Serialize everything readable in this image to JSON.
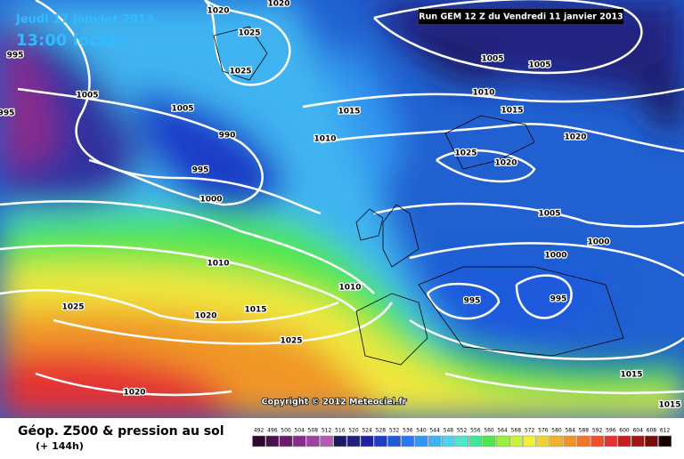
{
  "header": {
    "date": "Jeudi 17 janvier 2013",
    "time": "13:00 locale",
    "run": "Run GEM 12 Z du Vendredi 11 janvier 2013"
  },
  "copyright": "Copyright © 2012 Meteociel.fr",
  "footer": {
    "title": "Géop. Z500 & pression au sol",
    "lead": "(+ 144h)"
  },
  "legend": {
    "values": [
      492,
      496,
      500,
      504,
      508,
      512,
      516,
      520,
      524,
      528,
      532,
      536,
      540,
      544,
      548,
      552,
      556,
      560,
      564,
      568,
      572,
      576,
      580,
      584,
      588,
      592,
      596,
      600,
      604,
      608,
      612
    ],
    "colors": [
      "#2b0a2e",
      "#4b1050",
      "#6a1a6a",
      "#8a2a8a",
      "#a040a0",
      "#b060b0",
      "#1a1a60",
      "#202080",
      "#2020a0",
      "#1e3cc8",
      "#1e5adc",
      "#2878f0",
      "#3296f0",
      "#40b4f0",
      "#50d2f0",
      "#50e6c8",
      "#40e696",
      "#50e650",
      "#96f03c",
      "#c8f03c",
      "#f0f03c",
      "#f0d232",
      "#f0b428",
      "#f09628",
      "#f07828",
      "#f05028",
      "#e63232",
      "#c81e1e",
      "#a01414",
      "#780a0a",
      "#1a0000"
    ]
  },
  "isobar_labels": [
    1020,
    1020,
    1025,
    1025,
    995,
    995,
    1005,
    1005,
    990,
    1010,
    1015,
    995,
    1000,
    1010,
    1010,
    1015,
    1020,
    1025,
    1025,
    1020,
    1005,
    1005,
    1010,
    1015,
    1020,
    1025,
    1020,
    1005,
    1000,
    1000,
    995,
    995,
    1015,
    1015
  ]
}
